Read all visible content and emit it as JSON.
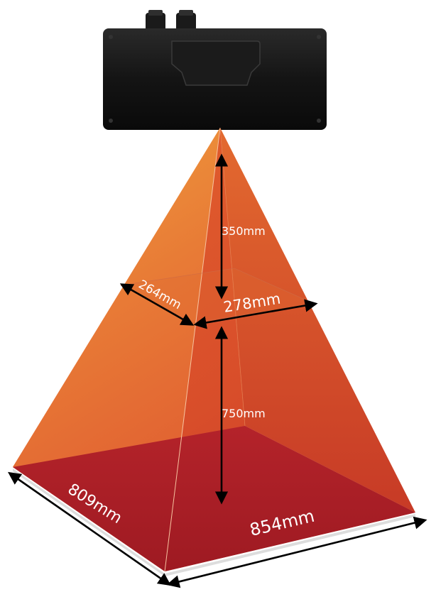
{
  "colors": {
    "background": "#ffffff",
    "device_body": "#111111",
    "beam_top": "#eb8f35",
    "beam_bottom": "#d8502a",
    "floor_plane": "#a81c22",
    "near_plane": "#e06a32",
    "arrow": "#000000",
    "label": "#ffffff"
  },
  "labels": {
    "depth_near": "350mm",
    "depth_far": "750mm",
    "near_width": "278mm",
    "near_depth": "264mm",
    "far_width": "854mm",
    "far_depth": "809mm"
  }
}
